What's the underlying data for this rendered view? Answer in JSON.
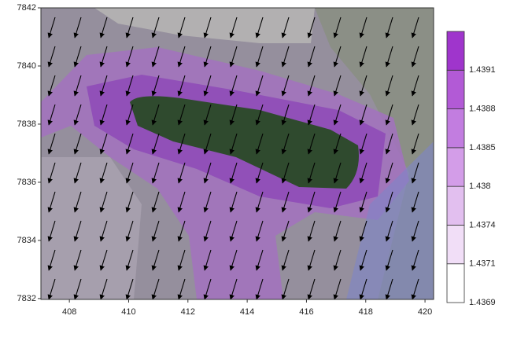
{
  "map": {
    "xlim": [
      407.04,
      420.29
    ],
    "ylim": [
      7831.97,
      7842
    ],
    "xticks": [
      408,
      410,
      412,
      414,
      416,
      418,
      420
    ],
    "yticks": [
      7832,
      7834,
      7836,
      7838,
      7840,
      7842
    ],
    "colorbar": {
      "levels": [
        1.4369,
        1.4371,
        1.4374,
        1.438,
        1.4385,
        1.4388,
        1.4391
      ],
      "colors": [
        "#ffffff",
        "#f1def7",
        "#e2bfef",
        "#d39de8",
        "#c27de0",
        "#b25ad6",
        "#9f35cc"
      ]
    }
  }
}
